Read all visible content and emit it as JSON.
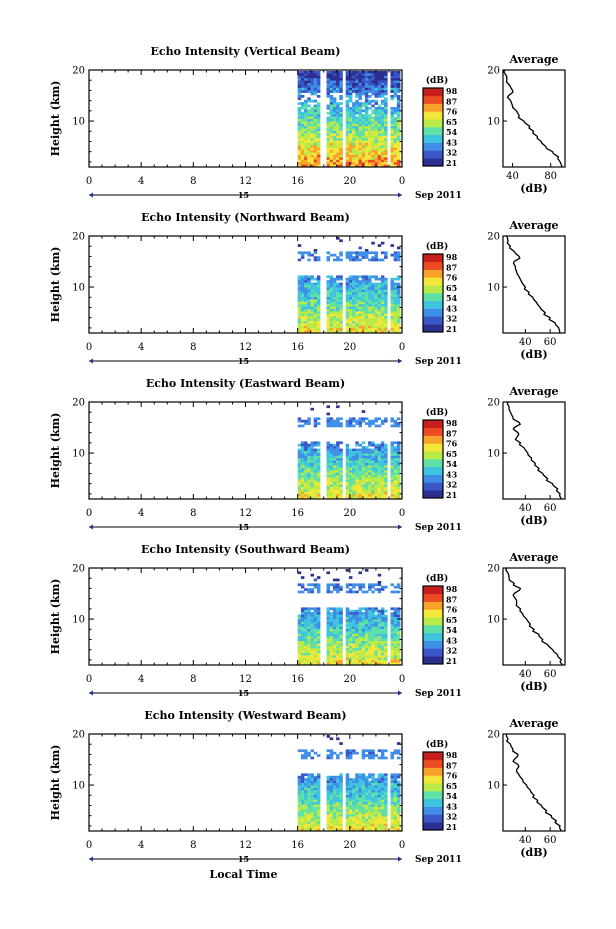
{
  "chart_data": {
    "type": "heatmap",
    "panels": [
      {
        "title": "Echo Intensity (Vertical Beam)",
        "avg_title": "Average",
        "date_label": "Sep 2011",
        "day_label": "15",
        "profile": [
          [
            92,
            1
          ],
          [
            90,
            2
          ],
          [
            88,
            3
          ],
          [
            82,
            4
          ],
          [
            75,
            5
          ],
          [
            70,
            6
          ],
          [
            66,
            7
          ],
          [
            62,
            8
          ],
          [
            58,
            9
          ],
          [
            52,
            10
          ],
          [
            47,
            11
          ],
          [
            44,
            12
          ],
          [
            40,
            13
          ],
          [
            38,
            14
          ],
          [
            36,
            15
          ],
          [
            40,
            16
          ],
          [
            37,
            17
          ],
          [
            34,
            18
          ],
          [
            33,
            19
          ],
          [
            32,
            20
          ]
        ],
        "profile_xlim": [
          30,
          95
        ]
      },
      {
        "title": "Echo Intensity (Northward Beam)",
        "avg_title": "Average",
        "date_label": "Sep 2011",
        "day_label": "15",
        "profile": [
          [
            68,
            1
          ],
          [
            67,
            2
          ],
          [
            64,
            3
          ],
          [
            60,
            4
          ],
          [
            56,
            5
          ],
          [
            52,
            6
          ],
          [
            49,
            7
          ],
          [
            46,
            8
          ],
          [
            43,
            9
          ],
          [
            40,
            10
          ],
          [
            37,
            11
          ],
          [
            35,
            12
          ],
          [
            33,
            13
          ],
          [
            32,
            14
          ],
          [
            31,
            15
          ],
          [
            35,
            16
          ],
          [
            31,
            17
          ],
          [
            28,
            18
          ],
          [
            26,
            19
          ],
          [
            25,
            20
          ]
        ],
        "profile_xlim": [
          22,
          72
        ]
      },
      {
        "title": "Echo Intensity (Eastward Beam)",
        "avg_title": "Average",
        "date_label": "Sep 2011",
        "day_label": "15",
        "profile": [
          [
            69,
            1
          ],
          [
            68,
            2
          ],
          [
            66,
            3
          ],
          [
            62,
            4
          ],
          [
            58,
            5
          ],
          [
            54,
            6
          ],
          [
            51,
            7
          ],
          [
            48,
            8
          ],
          [
            45,
            9
          ],
          [
            42,
            10
          ],
          [
            39,
            11
          ],
          [
            36,
            12
          ],
          [
            33,
            13
          ],
          [
            34,
            14
          ],
          [
            31,
            15
          ],
          [
            35,
            16
          ],
          [
            30,
            17
          ],
          [
            28,
            18
          ],
          [
            27,
            19
          ],
          [
            26,
            20
          ]
        ],
        "profile_xlim": [
          22,
          72
        ]
      },
      {
        "title": "Echo Intensity (Southward Beam)",
        "avg_title": "Average",
        "date_label": "Sep 2011",
        "day_label": "15",
        "profile": [
          [
            70,
            1
          ],
          [
            69,
            2
          ],
          [
            66,
            3
          ],
          [
            62,
            4
          ],
          [
            58,
            5
          ],
          [
            54,
            6
          ],
          [
            51,
            7
          ],
          [
            47,
            8
          ],
          [
            44,
            9
          ],
          [
            41,
            10
          ],
          [
            38,
            11
          ],
          [
            36,
            12
          ],
          [
            33,
            13
          ],
          [
            32,
            14
          ],
          [
            31,
            15
          ],
          [
            36,
            16
          ],
          [
            31,
            17
          ],
          [
            27,
            18
          ],
          [
            26,
            19
          ],
          [
            25,
            20
          ]
        ],
        "profile_xlim": [
          22,
          72
        ]
      },
      {
        "title": "Echo Intensity (Westward Beam)",
        "avg_title": "Average",
        "date_label": "Sep 2011",
        "day_label": "15",
        "profile": [
          [
            69,
            1
          ],
          [
            68,
            2
          ],
          [
            65,
            3
          ],
          [
            61,
            4
          ],
          [
            57,
            5
          ],
          [
            53,
            6
          ],
          [
            50,
            7
          ],
          [
            47,
            8
          ],
          [
            44,
            9
          ],
          [
            41,
            10
          ],
          [
            38,
            11
          ],
          [
            35,
            12
          ],
          [
            33,
            13
          ],
          [
            34,
            14
          ],
          [
            31,
            15
          ],
          [
            34,
            16
          ],
          [
            30,
            17
          ],
          [
            28,
            18
          ],
          [
            26,
            19
          ],
          [
            25,
            20
          ]
        ],
        "profile_xlim": [
          22,
          72
        ]
      }
    ],
    "ylabel": "Height (km)",
    "xlabel": "Local Time",
    "x_ticks": [
      "0",
      "4",
      "8",
      "12",
      "16",
      "20",
      "0"
    ],
    "y_ticks": [
      "20",
      "10"
    ],
    "ylim": [
      1,
      20
    ],
    "xlim": [
      0,
      24
    ],
    "data_time_range": [
      16,
      24
    ],
    "colorbar": {
      "label": "(dB)",
      "ticks": [
        "98",
        "87",
        "76",
        "65",
        "54",
        "43",
        "32",
        "21"
      ],
      "colors": [
        "#2b2f8f",
        "#3b56c9",
        "#3f8fe6",
        "#3fc4e0",
        "#5fe0a6",
        "#b8ea4a",
        "#f5e63a",
        "#f8a22a",
        "#ec4a22",
        "#c81e1e"
      ]
    },
    "avg_xlabel": "(dB)",
    "vertical_avg_ticks": [
      "40",
      "80"
    ],
    "beam_avg_ticks": [
      "40",
      "60"
    ]
  }
}
